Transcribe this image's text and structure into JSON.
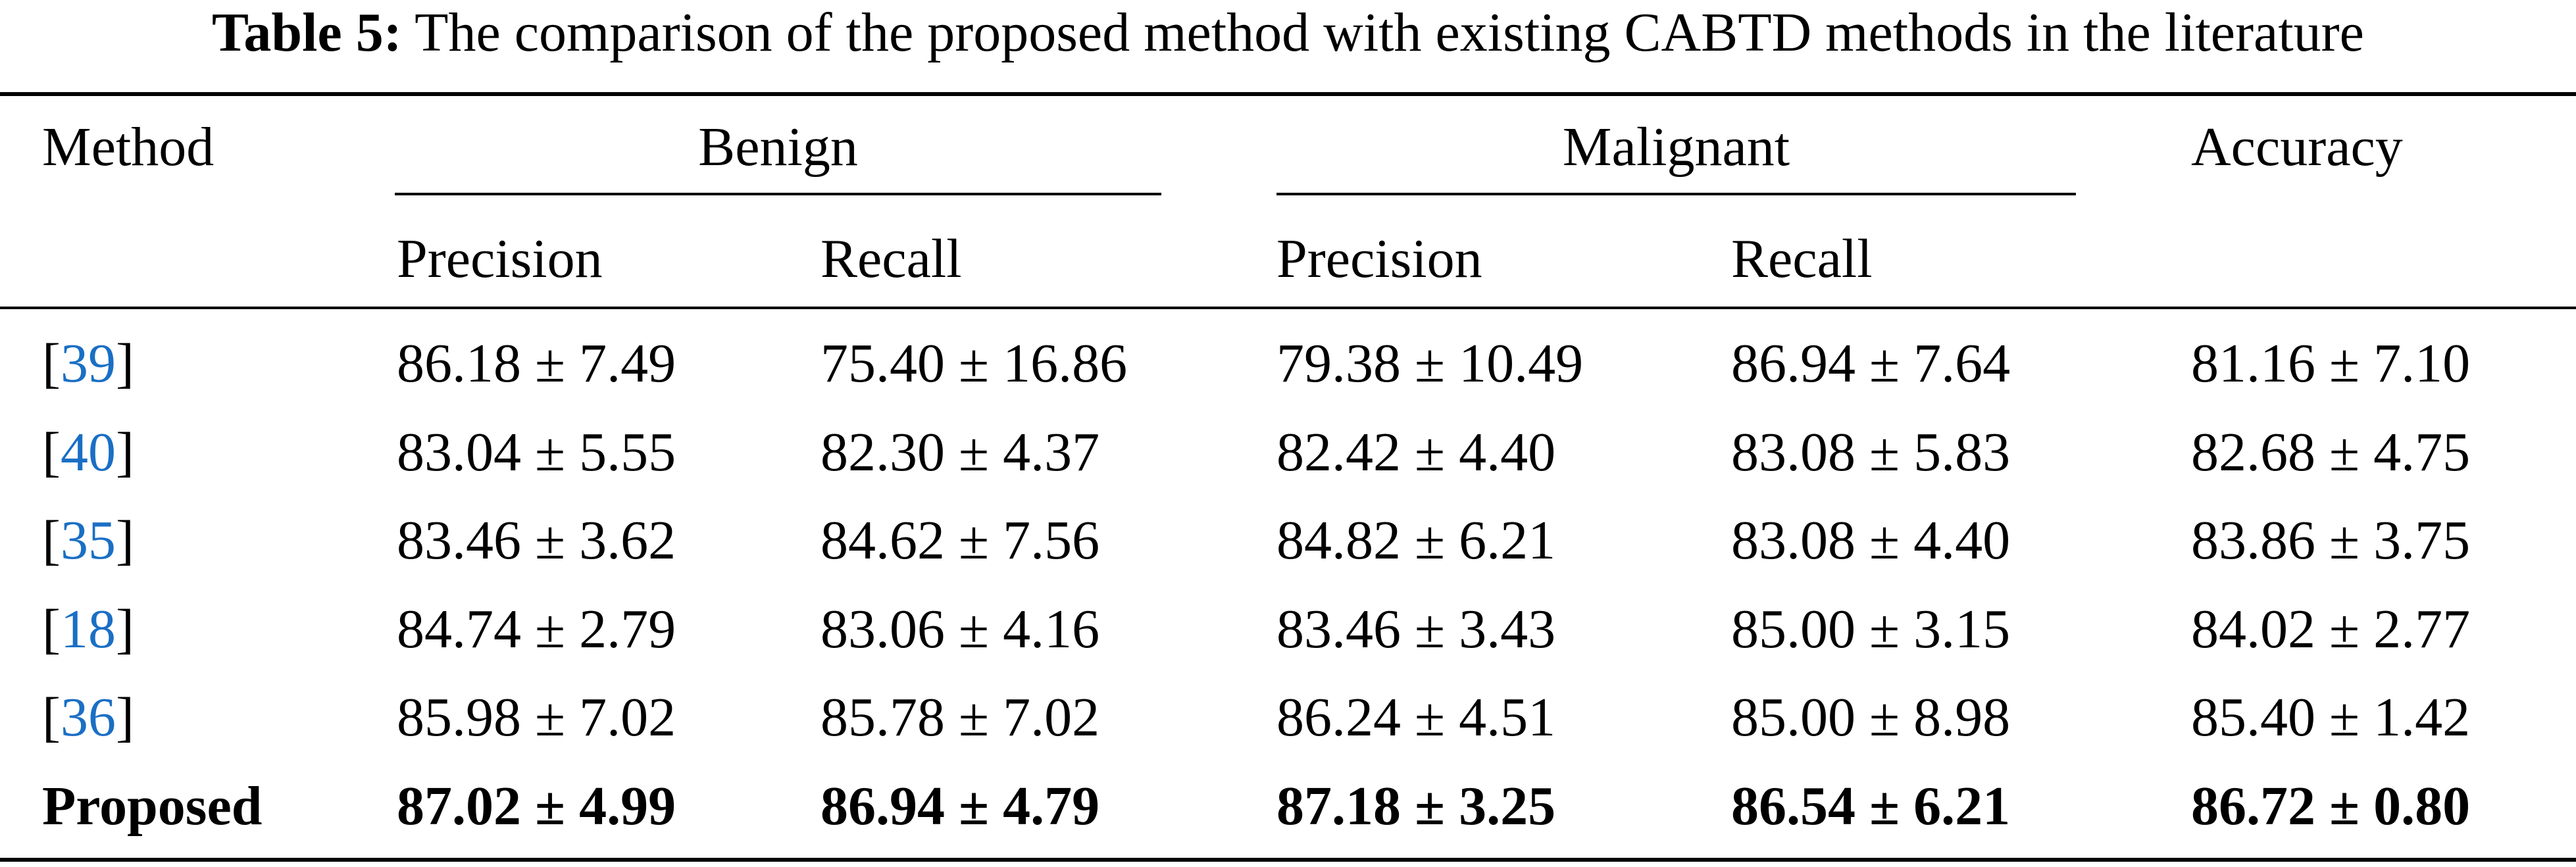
{
  "caption": {
    "label": "Table 5:",
    "text": "The comparison of the proposed method with existing CABTD methods in the literature"
  },
  "colors": {
    "text": "#000000",
    "reference_link": "#1a6fc4"
  },
  "header": {
    "method": "Method",
    "benign": "Benign",
    "malignant": "Malignant",
    "accuracy": "Accuracy",
    "benign_precision": "Precision",
    "benign_recall": "Recall",
    "malignant_precision": "Precision",
    "malignant_recall": "Recall"
  },
  "rows": [
    {
      "ref_open": "[",
      "ref": "39",
      "ref_close": "]",
      "benign_precision": "86.18 ± 7.49",
      "benign_recall": "75.40 ± 16.86",
      "malignant_precision": "79.38 ± 10.49",
      "malignant_recall": "86.94 ± 7.64",
      "accuracy": "81.16 ± 7.10"
    },
    {
      "ref_open": "[",
      "ref": "40",
      "ref_close": "]",
      "benign_precision": "83.04 ± 5.55",
      "benign_recall": "82.30 ± 4.37",
      "malignant_precision": "82.42 ± 4.40",
      "malignant_recall": "83.08 ± 5.83",
      "accuracy": "82.68 ± 4.75"
    },
    {
      "ref_open": "[",
      "ref": "35",
      "ref_close": "]",
      "benign_precision": "83.46 ± 3.62",
      "benign_recall": "84.62 ± 7.56",
      "malignant_precision": "84.82 ± 6.21",
      "malignant_recall": "83.08 ± 4.40",
      "accuracy": "83.86 ± 3.75"
    },
    {
      "ref_open": "[",
      "ref": "18",
      "ref_close": "]",
      "benign_precision": "84.74 ± 2.79",
      "benign_recall": "83.06 ± 4.16",
      "malignant_precision": "83.46 ± 3.43",
      "malignant_recall": "85.00 ± 3.15",
      "accuracy": "84.02 ± 2.77"
    },
    {
      "ref_open": "[",
      "ref": "36",
      "ref_close": "]",
      "benign_precision": "85.98 ± 7.02",
      "benign_recall": "85.78 ± 7.02",
      "malignant_precision": "86.24 ± 4.51",
      "malignant_recall": "85.00 ± 8.98",
      "accuracy": "85.40 ± 1.42"
    }
  ],
  "proposed": {
    "method": "Proposed",
    "benign_precision": "87.02 ± 4.99",
    "benign_recall": "86.94 ± 4.79",
    "malignant_precision": "87.18 ± 3.25",
    "malignant_recall": "86.54 ± 6.21",
    "accuracy": "86.72 ± 0.80"
  }
}
